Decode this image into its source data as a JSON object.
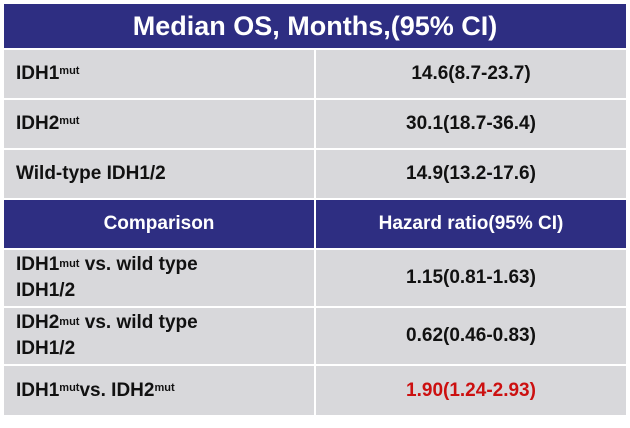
{
  "title": "Median OS, Months,(95% CI)",
  "median_rows": [
    {
      "label": "IDH1",
      "sup": "mut",
      "value": "14.6(8.7-23.7)"
    },
    {
      "label": "IDH2",
      "sup": "mut",
      "value": "30.1(18.7-36.4)"
    },
    {
      "label": "Wild-type IDH1/2",
      "value": "14.9(13.2-17.6)"
    }
  ],
  "comparison_header": {
    "col1": "Comparison",
    "col2": "Hazard ratio(95% CI)"
  },
  "comparison_rows": [
    {
      "a": "IDH1",
      "a_sup": "mut",
      "rest": " vs. wild type",
      "line2": "IDH1/2",
      "value": "1.15(0.81-1.63)"
    },
    {
      "a": "IDH2",
      "a_sup": "mut",
      "rest": " vs. wild type",
      "line2": "IDH1/2",
      "value": "0.62(0.46-0.83)"
    },
    {
      "a": "IDH1",
      "a_sup": "mut",
      "mid": " vs. IDH2",
      "b_sup": "mut",
      "value": "1.90(1.24-2.93)",
      "value_color": "#cc1010"
    }
  ]
}
